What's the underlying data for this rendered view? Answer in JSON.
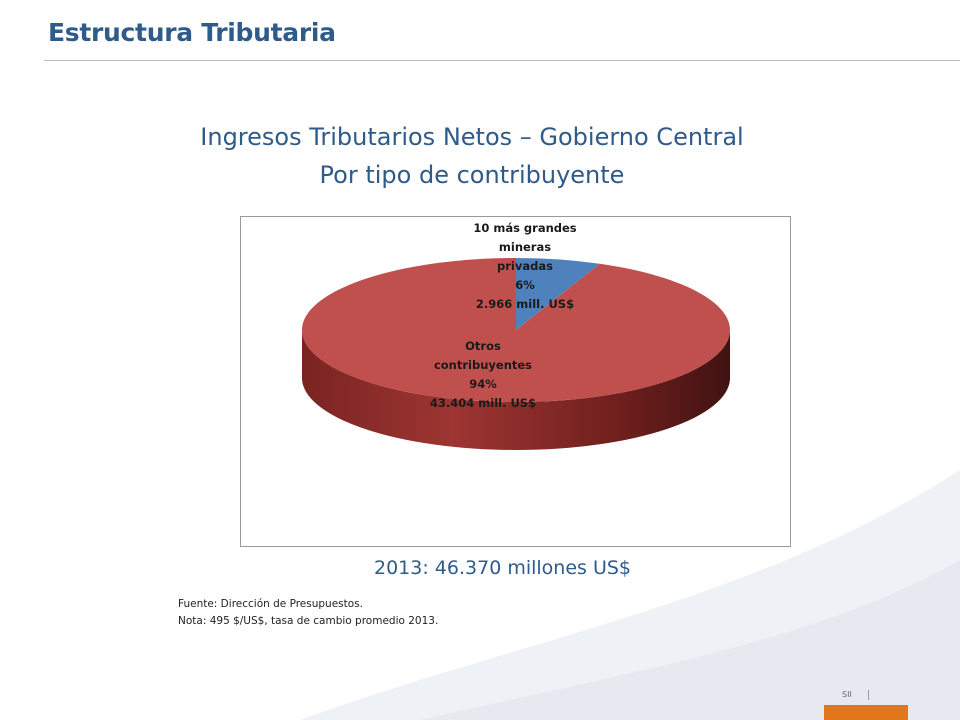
{
  "header": {
    "title": "Estructura Tributaria"
  },
  "chart_data": {
    "type": "pie",
    "title": [
      "Ingresos Tributarios Netos – Gobierno Central",
      "Por tipo de contribuyente"
    ],
    "slices": [
      {
        "label_lines": [
          "10 más grandes",
          "mineras",
          "privadas"
        ],
        "percent_label": "6%",
        "amount_label": "2.966 mill. US$",
        "value": 2966,
        "percent": 6,
        "color": "#4f81bd"
      },
      {
        "label_lines": [
          "Otros",
          "contribuyentes"
        ],
        "percent_label": "94%",
        "amount_label": "43.404 mill. US$",
        "value": 43404,
        "percent": 94,
        "color": "#c0504d"
      }
    ],
    "unit": "mill. US$",
    "total_caption": "2013: 46.370 millones US$"
  },
  "notes": {
    "source": "Fuente: Dirección de Presupuestos.",
    "note": "Nota: 495 $/US$, tasa de cambio promedio 2013."
  },
  "footer": {
    "tag": "SII"
  },
  "colors": {
    "accent": "#2f5b8a",
    "footer_bar": "#e2761b"
  }
}
